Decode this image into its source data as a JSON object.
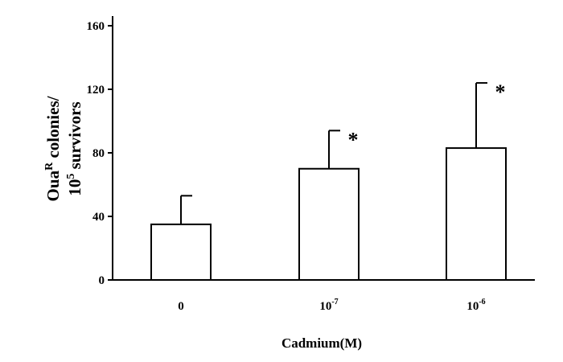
{
  "chart_data": {
    "type": "bar",
    "categories": [
      {
        "base": "0",
        "exp": ""
      },
      {
        "base": "10",
        "exp": "-7"
      },
      {
        "base": "10",
        "exp": "-6"
      }
    ],
    "values": [
      35,
      70,
      83
    ],
    "error_upper": [
      53,
      94,
      124
    ],
    "significance": [
      "",
      "*",
      "*"
    ],
    "ylabel": {
      "line1_main": "Oua",
      "line1_sup": "R",
      "line1_tail": " colonies/",
      "line2_main": "10",
      "line2_sup": "5",
      "line2_tail": " survivors"
    },
    "xlabel": "Cadmium(M)",
    "ylim": [
      0,
      160
    ],
    "yticks": [
      0,
      40,
      80,
      120,
      160
    ],
    "bar_color": "#ffffff",
    "grid": false
  }
}
